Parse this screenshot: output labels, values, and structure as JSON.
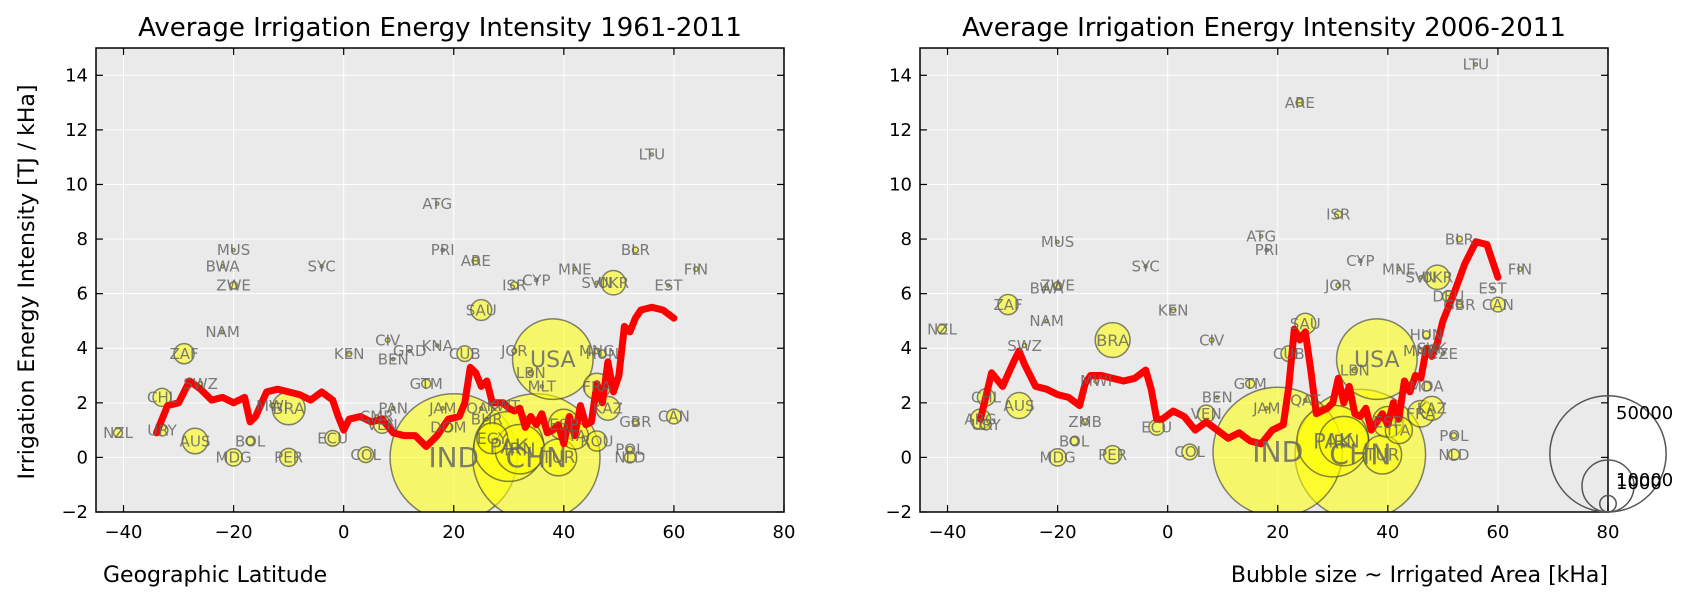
{
  "figure": {
    "ylabel": "Irrigation Energy Intensity [TJ / kHa]",
    "xlabel_left": "Geographic Latitude",
    "xlabel_right": "Bubble size ~ Irrigated Area [kHa]",
    "size_legend": [
      "50000",
      "10000",
      "1000"
    ]
  },
  "colors": {
    "bubble": "#ffff00",
    "line": "#ff0000",
    "plot_bg": "#eaeaea",
    "label": "#666666"
  },
  "chart_data": [
    {
      "type": "scatter",
      "title": "Average Irrigation Energy Intensity 1961-2011",
      "xlim": [
        -45,
        80
      ],
      "ylim": [
        -2,
        15
      ],
      "xticks": [
        -40,
        -20,
        0,
        20,
        40,
        60,
        80
      ],
      "yticks": [
        -2,
        0,
        2,
        4,
        6,
        8,
        10,
        12,
        14
      ],
      "grid": true,
      "points": [
        {
          "label": "NZL",
          "x": -41,
          "y": 0.9,
          "size": 300
        },
        {
          "label": "URY",
          "x": -33,
          "y": 1.0,
          "size": 500
        },
        {
          "label": "AUS",
          "x": -27,
          "y": 0.6,
          "size": 2400
        },
        {
          "label": "CHL",
          "x": -33,
          "y": 2.2,
          "size": 1200
        },
        {
          "label": "SWZ",
          "x": -26,
          "y": 2.7,
          "size": 60
        },
        {
          "label": "ZAF",
          "x": -29,
          "y": 3.8,
          "size": 1500
        },
        {
          "label": "NAM",
          "x": -22,
          "y": 4.6,
          "size": 10
        },
        {
          "label": "MUS",
          "x": -20,
          "y": 7.6,
          "size": 20
        },
        {
          "label": "BWA",
          "x": -22,
          "y": 7.0,
          "size": 5
        },
        {
          "label": "ZWE",
          "x": -20,
          "y": 6.3,
          "size": 200
        },
        {
          "label": "SYC",
          "x": -4,
          "y": 7.0,
          "size": 1
        },
        {
          "label": "MDG",
          "x": -20,
          "y": 0.0,
          "size": 1100
        },
        {
          "label": "BOL",
          "x": -17,
          "y": 0.6,
          "size": 250
        },
        {
          "label": "PER",
          "x": -10,
          "y": 0.0,
          "size": 1200
        },
        {
          "label": "MWI",
          "x": -13,
          "y": 1.9,
          "size": 70
        },
        {
          "label": "BRA",
          "x": -10,
          "y": 1.8,
          "size": 4000
        },
        {
          "label": "ECU",
          "x": -2,
          "y": 0.7,
          "size": 900
        },
        {
          "label": "COL",
          "x": 4,
          "y": 0.1,
          "size": 900
        },
        {
          "label": "KEN",
          "x": 1,
          "y": 3.8,
          "size": 100
        },
        {
          "label": "CIV",
          "x": 8,
          "y": 4.3,
          "size": 80
        },
        {
          "label": "GRD",
          "x": 12,
          "y": 3.9,
          "size": 1
        },
        {
          "label": "BEN",
          "x": 9,
          "y": 3.6,
          "size": 20
        },
        {
          "label": "KNA",
          "x": 17,
          "y": 4.1,
          "size": 1
        },
        {
          "label": "CUB",
          "x": 22,
          "y": 3.8,
          "size": 900
        },
        {
          "label": "GTM",
          "x": 15,
          "y": 2.7,
          "size": 300
        },
        {
          "label": "PAN",
          "x": 9,
          "y": 1.8,
          "size": 40
        },
        {
          "label": "JAM",
          "x": 18,
          "y": 1.8,
          "size": 25
        },
        {
          "label": "CMR",
          "x": 6,
          "y": 1.5,
          "size": 40
        },
        {
          "label": "VEN",
          "x": 7,
          "y": 1.2,
          "size": 1100
        },
        {
          "label": "DOM",
          "x": 19,
          "y": 1.1,
          "size": 300
        },
        {
          "label": "IND",
          "x": 20,
          "y": 0.0,
          "size": 60000
        },
        {
          "label": "ATG",
          "x": 17,
          "y": 9.3,
          "size": 1
        },
        {
          "label": "PRI",
          "x": 18,
          "y": 7.6,
          "size": 40
        },
        {
          "label": "ARE",
          "x": 24,
          "y": 7.2,
          "size": 200
        },
        {
          "label": "SAU",
          "x": 25,
          "y": 5.4,
          "size": 1600
        },
        {
          "label": "ISR",
          "x": 31,
          "y": 6.3,
          "size": 200
        },
        {
          "label": "CYP",
          "x": 35,
          "y": 6.5,
          "size": 40
        },
        {
          "label": "JOR",
          "x": 31,
          "y": 3.9,
          "size": 80
        },
        {
          "label": "LBN",
          "x": 34,
          "y": 3.1,
          "size": 100
        },
        {
          "label": "MLT",
          "x": 36,
          "y": 2.6,
          "size": 2
        },
        {
          "label": "USA",
          "x": 38,
          "y": 3.6,
          "size": 24000
        },
        {
          "label": "QAT",
          "x": 25,
          "y": 1.8,
          "size": 10
        },
        {
          "label": "KWT",
          "x": 29,
          "y": 1.9,
          "size": 10
        },
        {
          "label": "BHR",
          "x": 26,
          "y": 1.4,
          "size": 5
        },
        {
          "label": "EGY",
          "x": 27,
          "y": 0.7,
          "size": 3500
        },
        {
          "label": "PAK",
          "x": 30,
          "y": 0.4,
          "size": 18000
        },
        {
          "label": "CHN",
          "x": 35,
          "y": 0.0,
          "size": 60000
        },
        {
          "label": "IRN",
          "x": 32,
          "y": 0.3,
          "size": 9000
        },
        {
          "label": "TUR",
          "x": 39,
          "y": 0.0,
          "size": 5000
        },
        {
          "label": "ESP",
          "x": 40,
          "y": 1.2,
          "size": 3500
        },
        {
          "label": "ITA",
          "x": 42,
          "y": 0.8,
          "size": 2700
        },
        {
          "label": "ROU",
          "x": 46,
          "y": 0.6,
          "size": 1500
        },
        {
          "label": "FRA",
          "x": 46,
          "y": 2.6,
          "size": 2600
        },
        {
          "label": "MNG",
          "x": 46,
          "y": 3.9,
          "size": 100
        },
        {
          "label": "HUN",
          "x": 47,
          "y": 3.8,
          "size": 200
        },
        {
          "label": "KAZ",
          "x": 48,
          "y": 1.8,
          "size": 2100
        },
        {
          "label": "MNE",
          "x": 42,
          "y": 6.9,
          "size": 5
        },
        {
          "label": "SVN",
          "x": 46,
          "y": 6.4,
          "size": 10
        },
        {
          "label": "UKR",
          "x": 49,
          "y": 6.4,
          "size": 2200
        },
        {
          "label": "BLR",
          "x": 53,
          "y": 7.6,
          "size": 130
        },
        {
          "label": "EST",
          "x": 59,
          "y": 6.3,
          "size": 5
        },
        {
          "label": "FIN",
          "x": 64,
          "y": 6.9,
          "size": 70
        },
        {
          "label": "LTU",
          "x": 56,
          "y": 11.1,
          "size": 5
        },
        {
          "label": "GBR",
          "x": 53,
          "y": 1.3,
          "size": 150
        },
        {
          "label": "CAN",
          "x": 60,
          "y": 1.5,
          "size": 800
        },
        {
          "label": "POL",
          "x": 52,
          "y": 0.3,
          "size": 120
        },
        {
          "label": "NLD",
          "x": 52,
          "y": 0.0,
          "size": 450
        }
      ],
      "trend": {
        "name": "moving average",
        "x": [
          -34,
          -32,
          -30,
          -28,
          -26,
          -24,
          -22,
          -20,
          -18,
          -17,
          -16,
          -14,
          -12,
          -10,
          -8,
          -6,
          -4,
          -2,
          -1,
          0,
          1,
          3,
          5,
          7,
          9,
          11,
          13,
          15,
          17,
          19,
          21,
          22,
          23,
          24,
          25,
          26,
          27,
          28,
          29,
          30,
          31,
          32,
          33,
          34,
          35,
          36,
          37,
          38,
          39,
          40,
          41,
          42,
          43,
          44,
          45,
          46,
          47,
          48,
          49,
          50,
          51,
          52,
          53,
          54,
          56,
          58,
          60
        ],
        "y": [
          0.9,
          1.9,
          2.0,
          2.8,
          2.5,
          2.1,
          2.2,
          2.0,
          2.2,
          1.3,
          1.5,
          2.4,
          2.5,
          2.4,
          2.3,
          2.1,
          2.4,
          2.1,
          1.5,
          1.0,
          1.4,
          1.5,
          1.3,
          1.4,
          0.9,
          0.8,
          0.8,
          0.4,
          0.8,
          1.4,
          1.5,
          2.0,
          3.3,
          3.1,
          2.6,
          2.8,
          2.0,
          2.0,
          2.0,
          1.8,
          1.7,
          1.8,
          1.1,
          1.5,
          1.2,
          1.6,
          0.9,
          1.0,
          1.2,
          0.5,
          1.5,
          0.8,
          1.9,
          1.2,
          1.3,
          2.7,
          2.0,
          3.5,
          2.4,
          3.0,
          4.8,
          4.6,
          5.1,
          5.4,
          5.5,
          5.4,
          5.1
        ]
      }
    },
    {
      "type": "scatter",
      "title": "Average Irrigation Energy Intensity 2006-2011",
      "xlim": [
        -45,
        80
      ],
      "ylim": [
        -2,
        15
      ],
      "xticks": [
        -40,
        -20,
        0,
        20,
        40,
        60,
        80
      ],
      "yticks": [
        -2,
        0,
        2,
        4,
        6,
        8,
        10,
        12,
        14
      ],
      "grid": true,
      "points": [
        {
          "label": "NZL",
          "x": -41,
          "y": 4.7,
          "size": 300
        },
        {
          "label": "ARG",
          "x": -34,
          "y": 1.4,
          "size": 1500
        },
        {
          "label": "URY",
          "x": -33,
          "y": 1.2,
          "size": 400
        },
        {
          "label": "AUS",
          "x": -27,
          "y": 1.9,
          "size": 2500
        },
        {
          "label": "CHL",
          "x": -33,
          "y": 2.2,
          "size": 1100
        },
        {
          "label": "SWZ",
          "x": -26,
          "y": 4.1,
          "size": 60
        },
        {
          "label": "ZAF",
          "x": -29,
          "y": 5.6,
          "size": 1500
        },
        {
          "label": "NAM",
          "x": -22,
          "y": 5.0,
          "size": 10
        },
        {
          "label": "MUS",
          "x": -20,
          "y": 7.9,
          "size": 20
        },
        {
          "label": "BWA",
          "x": -22,
          "y": 6.2,
          "size": 5
        },
        {
          "label": "ZWE",
          "x": -20,
          "y": 6.3,
          "size": 200
        },
        {
          "label": "SYC",
          "x": -4,
          "y": 7.0,
          "size": 1
        },
        {
          "label": "MDG",
          "x": -20,
          "y": 0.0,
          "size": 1100
        },
        {
          "label": "BOL",
          "x": -17,
          "y": 0.6,
          "size": 250
        },
        {
          "label": "ZMB",
          "x": -15,
          "y": 1.3,
          "size": 150
        },
        {
          "label": "PER",
          "x": -10,
          "y": 0.1,
          "size": 1200
        },
        {
          "label": "MWI",
          "x": -13,
          "y": 2.8,
          "size": 70
        },
        {
          "label": "BRA",
          "x": -10,
          "y": 4.3,
          "size": 4500
        },
        {
          "label": "ECU",
          "x": -2,
          "y": 1.1,
          "size": 900
        },
        {
          "label": "COL",
          "x": 4,
          "y": 0.2,
          "size": 900
        },
        {
          "label": "KEN",
          "x": 1,
          "y": 5.4,
          "size": 100
        },
        {
          "label": "CIV",
          "x": 8,
          "y": 4.3,
          "size": 80
        },
        {
          "label": "BEN",
          "x": 9,
          "y": 2.2,
          "size": 20
        },
        {
          "label": "GTM",
          "x": 15,
          "y": 2.7,
          "size": 300
        },
        {
          "label": "VEN",
          "x": 7,
          "y": 1.6,
          "size": 1100
        },
        {
          "label": "JAM",
          "x": 18,
          "y": 1.8,
          "size": 25
        },
        {
          "label": "IND",
          "x": 20,
          "y": 0.2,
          "size": 62000
        },
        {
          "label": "ATG",
          "x": 17,
          "y": 8.1,
          "size": 1
        },
        {
          "label": "PRI",
          "x": 18,
          "y": 7.6,
          "size": 40
        },
        {
          "label": "ARE",
          "x": 24,
          "y": 13.0,
          "size": 200
        },
        {
          "label": "ISR",
          "x": 31,
          "y": 8.9,
          "size": 200
        },
        {
          "label": "CYP",
          "x": 35,
          "y": 7.2,
          "size": 40
        },
        {
          "label": "JOR",
          "x": 31,
          "y": 6.3,
          "size": 80
        },
        {
          "label": "SAU",
          "x": 25,
          "y": 4.9,
          "size": 1600
        },
        {
          "label": "CUB",
          "x": 22,
          "y": 3.8,
          "size": 900
        },
        {
          "label": "LBN",
          "x": 34,
          "y": 3.2,
          "size": 100
        },
        {
          "label": "USA",
          "x": 38,
          "y": 3.6,
          "size": 24000
        },
        {
          "label": "QAT",
          "x": 25,
          "y": 2.1,
          "size": 10
        },
        {
          "label": "PAK",
          "x": 30,
          "y": 0.6,
          "size": 19000
        },
        {
          "label": "CHN",
          "x": 35,
          "y": 0.1,
          "size": 63000
        },
        {
          "label": "IRN",
          "x": 32,
          "y": 0.6,
          "size": 9000
        },
        {
          "label": "TUR",
          "x": 39,
          "y": 0.1,
          "size": 5500
        },
        {
          "label": "KAZ",
          "x": 48,
          "y": 1.8,
          "size": 2100
        },
        {
          "label": "MDA",
          "x": 47,
          "y": 2.6,
          "size": 300
        },
        {
          "label": "LTU",
          "x": 56,
          "y": 14.4,
          "size": 5
        },
        {
          "label": "BLR",
          "x": 53,
          "y": 8.0,
          "size": 130
        },
        {
          "label": "MNE",
          "x": 42,
          "y": 6.9,
          "size": 5
        },
        {
          "label": "SVN",
          "x": 46,
          "y": 6.6,
          "size": 10
        },
        {
          "label": "UKR",
          "x": 49,
          "y": 6.6,
          "size": 2200
        },
        {
          "label": "DEU",
          "x": 51,
          "y": 5.9,
          "size": 500
        },
        {
          "label": "GBR",
          "x": 53,
          "y": 5.6,
          "size": 150
        },
        {
          "label": "EST",
          "x": 59,
          "y": 6.2,
          "size": 5
        },
        {
          "label": "FIN",
          "x": 64,
          "y": 6.9,
          "size": 70
        },
        {
          "label": "CAN",
          "x": 60,
          "y": 5.6,
          "size": 800
        },
        {
          "label": "HUN",
          "x": 47,
          "y": 4.5,
          "size": 200
        },
        {
          "label": "SVK",
          "x": 48,
          "y": 4.0,
          "size": 150
        },
        {
          "label": "CZE",
          "x": 50,
          "y": 3.8,
          "size": 40
        },
        {
          "label": "MNG",
          "x": 46,
          "y": 3.9,
          "size": 100
        },
        {
          "label": "ITA",
          "x": 42,
          "y": 1.0,
          "size": 2700
        },
        {
          "label": "ESP",
          "x": 40,
          "y": 1.3,
          "size": 3500
        },
        {
          "label": "FRA",
          "x": 46,
          "y": 1.6,
          "size": 2600
        },
        {
          "label": "POL",
          "x": 52,
          "y": 0.8,
          "size": 120
        },
        {
          "label": "NLD",
          "x": 52,
          "y": 0.1,
          "size": 450
        }
      ],
      "trend": {
        "name": "moving average",
        "x": [
          -34,
          -32,
          -30,
          -28,
          -27,
          -26,
          -24,
          -22,
          -20,
          -18,
          -16,
          -15,
          -14,
          -12,
          -10,
          -8,
          -6,
          -4,
          -3,
          -2,
          -1,
          1,
          3,
          5,
          7,
          9,
          11,
          13,
          15,
          17,
          19,
          21,
          22,
          23,
          24,
          25,
          26,
          27,
          28,
          29,
          30,
          31,
          32,
          33,
          34,
          35,
          36,
          37,
          38,
          39,
          40,
          41,
          42,
          43,
          44,
          45,
          46,
          47,
          48,
          49,
          50,
          52,
          54,
          56,
          58,
          60
        ],
        "y": [
          1.4,
          3.1,
          2.6,
          3.5,
          3.9,
          3.4,
          2.6,
          2.5,
          2.3,
          2.2,
          1.9,
          2.7,
          3.0,
          3.0,
          2.9,
          2.8,
          2.9,
          3.2,
          2.5,
          1.4,
          1.4,
          1.7,
          1.5,
          1.0,
          1.3,
          1.0,
          0.7,
          0.9,
          0.6,
          0.5,
          1.0,
          1.2,
          2.6,
          4.7,
          4.3,
          4.6,
          3.2,
          1.6,
          1.7,
          1.8,
          2.0,
          2.9,
          2.0,
          2.6,
          1.6,
          1.5,
          1.8,
          1.0,
          1.3,
          1.6,
          1.2,
          2.0,
          1.4,
          2.8,
          2.4,
          3.0,
          2.9,
          4.0,
          3.7,
          4.2,
          5.0,
          6.0,
          7.1,
          7.9,
          7.8,
          6.6
        ]
      }
    }
  ]
}
